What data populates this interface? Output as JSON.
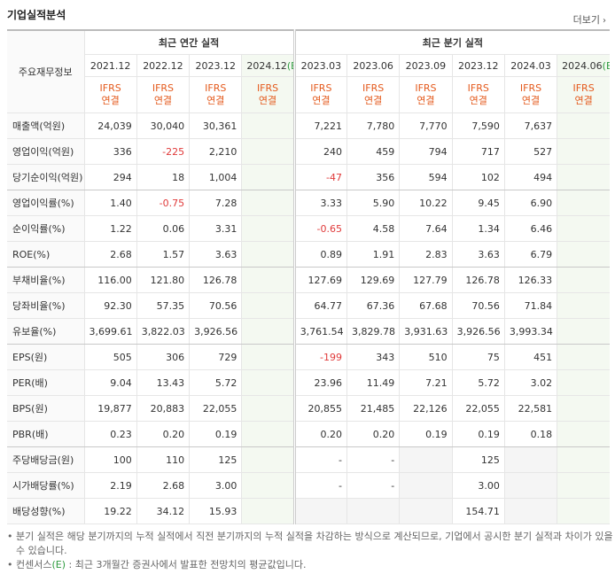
{
  "header": {
    "title": "기업실적분석",
    "more": "더보기"
  },
  "table": {
    "row_header": "주요재무정보",
    "groups": [
      {
        "title": "최근 연간 실적",
        "periods": [
          {
            "label": "2021.12",
            "standard": "IFRS",
            "basis": "연결"
          },
          {
            "label": "2022.12",
            "standard": "IFRS",
            "basis": "연결"
          },
          {
            "label": "2023.12",
            "standard": "IFRS",
            "basis": "연결"
          },
          {
            "label": "2024.12",
            "estimate": "(E)",
            "standard": "IFRS",
            "basis": "연결"
          }
        ]
      },
      {
        "title": "최근 분기 실적",
        "periods": [
          {
            "label": "2023.03",
            "standard": "IFRS",
            "basis": "연결"
          },
          {
            "label": "2023.06",
            "standard": "IFRS",
            "basis": "연결"
          },
          {
            "label": "2023.09",
            "standard": "IFRS",
            "basis": "연결"
          },
          {
            "label": "2023.12",
            "standard": "IFRS",
            "basis": "연결"
          },
          {
            "label": "2024.03",
            "standard": "IFRS",
            "basis": "연결"
          },
          {
            "label": "2024.06",
            "estimate": "(E)",
            "standard": "IFRS",
            "basis": "연결"
          }
        ]
      }
    ],
    "rows": [
      {
        "label": "매출액(억원)",
        "values": [
          "24,039",
          "30,040",
          "30,361",
          null,
          "7,221",
          "7,780",
          "7,770",
          "7,590",
          "7,637",
          null
        ]
      },
      {
        "label": "영업이익(억원)",
        "values": [
          "336",
          "-225",
          "2,210",
          null,
          "240",
          "459",
          "794",
          "717",
          "527",
          null
        ]
      },
      {
        "label": "당기순이익(억원)",
        "values": [
          "294",
          "18",
          "1,004",
          null,
          "-47",
          "356",
          "594",
          "102",
          "494",
          null
        ]
      },
      {
        "label": "영업이익률(%)",
        "values": [
          "1.40",
          "-0.75",
          "7.28",
          null,
          "3.33",
          "5.90",
          "10.22",
          "9.45",
          "6.90",
          null
        ]
      },
      {
        "label": "순이익률(%)",
        "values": [
          "1.22",
          "0.06",
          "3.31",
          null,
          "-0.65",
          "4.58",
          "7.64",
          "1.34",
          "6.46",
          null
        ]
      },
      {
        "label": "ROE(%)",
        "values": [
          "2.68",
          "1.57",
          "3.63",
          null,
          "0.89",
          "1.91",
          "2.83",
          "3.63",
          "6.79",
          null
        ]
      },
      {
        "label": "부채비율(%)",
        "values": [
          "116.00",
          "121.80",
          "126.78",
          null,
          "127.69",
          "129.69",
          "127.79",
          "126.78",
          "126.33",
          null
        ]
      },
      {
        "label": "당좌비율(%)",
        "values": [
          "92.30",
          "57.35",
          "70.56",
          null,
          "64.77",
          "67.36",
          "67.68",
          "70.56",
          "71.84",
          null
        ]
      },
      {
        "label": "유보율(%)",
        "values": [
          "3,699.61",
          "3,822.03",
          "3,926.56",
          null,
          "3,761.54",
          "3,829.78",
          "3,931.63",
          "3,926.56",
          "3,993.34",
          null
        ]
      },
      {
        "label": "EPS(원)",
        "values": [
          "505",
          "306",
          "729",
          null,
          "-199",
          "343",
          "510",
          "75",
          "451",
          null
        ]
      },
      {
        "label": "PER(배)",
        "values": [
          "9.04",
          "13.43",
          "5.72",
          null,
          "23.96",
          "11.49",
          "7.21",
          "5.72",
          "3.02",
          null
        ]
      },
      {
        "label": "BPS(원)",
        "values": [
          "19,877",
          "20,883",
          "22,055",
          null,
          "20,855",
          "21,485",
          "22,126",
          "22,055",
          "22,581",
          null
        ]
      },
      {
        "label": "PBR(배)",
        "values": [
          "0.23",
          "0.20",
          "0.19",
          null,
          "0.20",
          "0.20",
          "0.19",
          "0.19",
          "0.18",
          null
        ]
      },
      {
        "label": "주당배당금(원)",
        "values": [
          "100",
          "110",
          "125",
          null,
          "-",
          "-",
          null,
          "125",
          null,
          null
        ]
      },
      {
        "label": "시가배당률(%)",
        "values": [
          "2.19",
          "2.68",
          "3.00",
          null,
          "-",
          "-",
          null,
          "3.00",
          null,
          null
        ]
      },
      {
        "label": "배당성향(%)",
        "values": [
          "19.22",
          "34.12",
          "15.93",
          null,
          null,
          null,
          null,
          "154.71",
          null,
          null
        ]
      }
    ]
  },
  "notes": [
    [
      "분기 실적은 해당 분기까지의 누적 실적에서 직전 분기까지의 누적 실적을 차감하는 방식으로 계산되므로, 기업에서 공시한 분기 실적과 차이가 있을 수 있습니다."
    ],
    [
      "컨센서스",
      "(E)",
      " : 최근 3개월간 증권사에서 발표한 전망치의 평균값입니다."
    ]
  ]
}
